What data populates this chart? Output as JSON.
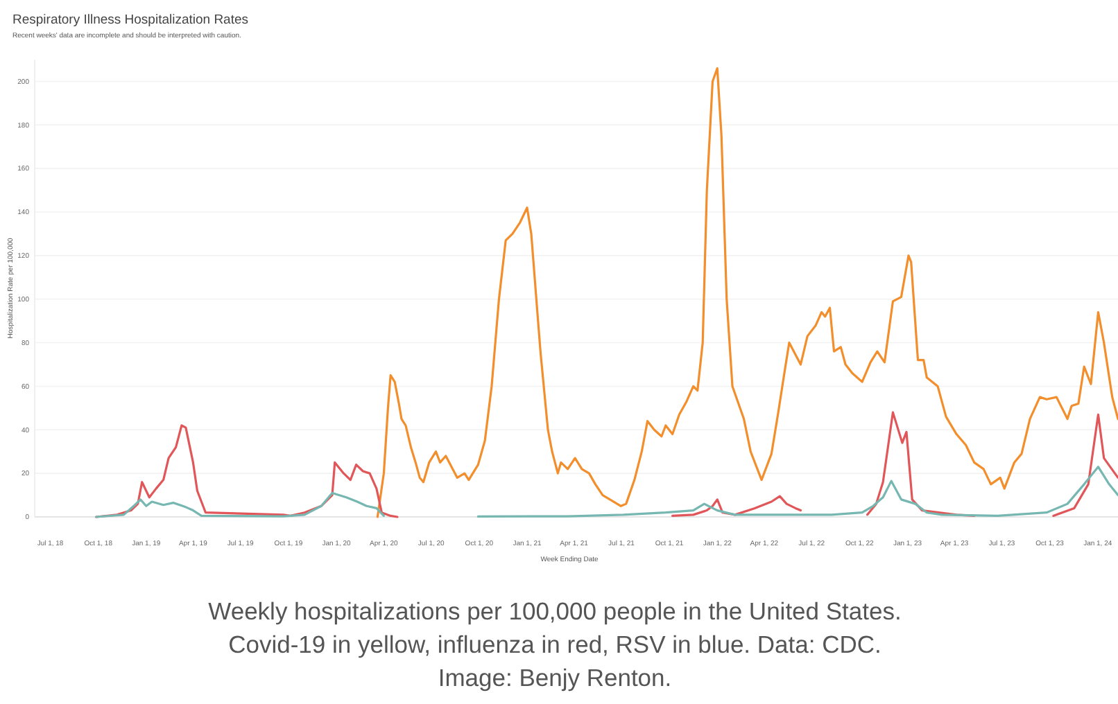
{
  "chart_data": {
    "type": "line",
    "title": "Respiratory Illness Hospitalization Rates",
    "subtitle": "Recent weeks' data are incomplete and should be interpreted with caution.",
    "xlabel": "Week Ending Date",
    "ylabel": "Hospitalization Rate per 100,000",
    "annotations": [
      "Weekly hospitalizations per 100,000 people in the United States. Covid-19 in yellow, influenza in red, RSV in blue. Data: CDC. Image: Benjy Renton."
    ],
    "xlim": [
      "2018-06-01",
      "2024-02-09"
    ],
    "xticks": [
      {
        "value": "2018-07-01",
        "label": "Jul 1, 18"
      },
      {
        "value": "2018-10-01",
        "label": "Oct 1, 18"
      },
      {
        "value": "2019-01-01",
        "label": "Jan 1, 19"
      },
      {
        "value": "2019-04-01",
        "label": "Apr 1, 19"
      },
      {
        "value": "2019-07-01",
        "label": "Jul 1, 19"
      },
      {
        "value": "2019-10-01",
        "label": "Oct 1, 19"
      },
      {
        "value": "2020-01-01",
        "label": "Jan 1, 20"
      },
      {
        "value": "2020-04-01",
        "label": "Apr 1, 20"
      },
      {
        "value": "2020-07-01",
        "label": "Jul 1, 20"
      },
      {
        "value": "2020-10-01",
        "label": "Oct 1, 20"
      },
      {
        "value": "2021-01-01",
        "label": "Jan 1, 21"
      },
      {
        "value": "2021-04-01",
        "label": "Apr 1, 21"
      },
      {
        "value": "2021-07-01",
        "label": "Jul 1, 21"
      },
      {
        "value": "2021-10-01",
        "label": "Oct 1, 21"
      },
      {
        "value": "2022-01-01",
        "label": "Jan 1, 22"
      },
      {
        "value": "2022-04-01",
        "label": "Apr 1, 22"
      },
      {
        "value": "2022-07-01",
        "label": "Jul 1, 22"
      },
      {
        "value": "2022-10-01",
        "label": "Oct 1, 22"
      },
      {
        "value": "2023-01-01",
        "label": "Jan 1, 23"
      },
      {
        "value": "2023-04-01",
        "label": "Apr 1, 23"
      },
      {
        "value": "2023-07-01",
        "label": "Jul 1, 23"
      },
      {
        "value": "2023-10-01",
        "label": "Oct 1, 23"
      },
      {
        "value": "2024-01-01",
        "label": "Jan 1, 24"
      }
    ],
    "ylim": [
      0,
      210
    ],
    "yticks": [
      0,
      20,
      40,
      60,
      80,
      100,
      120,
      140,
      160,
      180,
      200
    ],
    "grid": "y",
    "marker": "none",
    "line_style": "solid",
    "series": [
      {
        "color": "#f28e2b",
        "x": [
          "2020-03-20",
          "2020-04-01",
          "2020-04-09",
          "2020-04-14",
          "2020-04-22",
          "2020-04-30",
          "2020-05-05",
          "2020-05-13",
          "2020-05-23",
          "2020-06-01",
          "2020-06-09",
          "2020-06-16",
          "2020-06-27",
          "2020-07-10",
          "2020-07-18",
          "2020-07-29",
          "2020-08-20",
          "2020-09-03",
          "2020-09-11",
          "2020-09-29",
          "2020-10-12",
          "2020-10-25",
          "2020-11-08",
          "2020-11-21",
          "2020-12-04",
          "2020-12-18",
          "2021-01-01",
          "2021-01-09",
          "2021-01-22",
          "2021-01-27",
          "2021-02-10",
          "2021-02-18",
          "2021-03-01",
          "2021-03-07",
          "2021-03-20",
          "2021-04-03",
          "2021-04-16",
          "2021-04-30",
          "2021-05-12",
          "2021-05-26",
          "2021-06-09",
          "2021-06-30",
          "2021-07-10",
          "2021-07-26",
          "2021-08-09",
          "2021-08-20",
          "2021-09-02",
          "2021-09-16",
          "2021-09-24",
          "2021-10-07",
          "2021-10-20",
          "2021-11-03",
          "2021-11-16",
          "2021-11-24",
          "2021-12-04",
          "2021-12-12",
          "2021-12-23",
          "2022-01-01",
          "2022-01-09",
          "2022-01-19",
          "2022-01-30",
          "2022-02-21",
          "2022-03-06",
          "2022-03-27",
          "2022-04-15",
          "2022-04-28",
          "2022-05-11",
          "2022-05-19",
          "2022-06-10",
          "2022-06-23",
          "2022-07-09",
          "2022-07-20",
          "2022-07-27",
          "2022-08-05",
          "2022-08-13",
          "2022-08-26",
          "2022-09-04",
          "2022-09-17",
          "2022-10-06",
          "2022-10-22",
          "2022-11-04",
          "2022-11-18",
          "2022-12-04",
          "2022-12-20",
          "2023-01-03",
          "2023-01-08",
          "2023-01-21",
          "2023-02-01",
          "2023-02-07",
          "2023-02-28",
          "2023-03-16",
          "2023-04-05",
          "2023-04-23",
          "2023-05-09",
          "2023-05-27",
          "2023-06-10",
          "2023-06-28",
          "2023-07-06",
          "2023-07-25",
          "2023-08-08",
          "2023-08-24",
          "2023-09-12",
          "2023-09-25",
          "2023-10-14",
          "2023-11-04",
          "2023-11-12",
          "2023-11-25",
          "2023-12-06",
          "2023-12-19",
          "2024-01-02",
          "2024-01-13",
          "2024-01-29",
          "2024-02-09"
        ],
        "values": [
          0,
          20,
          50,
          65,
          62,
          52,
          45,
          42,
          32,
          25,
          18,
          16,
          25,
          30,
          25,
          28,
          18,
          20,
          17,
          24,
          35,
          60,
          100,
          127,
          130,
          135,
          142,
          130,
          90,
          75,
          40,
          30,
          20,
          25,
          22,
          27,
          22,
          20,
          15,
          10,
          8,
          5,
          6,
          17,
          30,
          44,
          40,
          37,
          42,
          38,
          47,
          53,
          60,
          58,
          80,
          150,
          200,
          206,
          175,
          100,
          60,
          45,
          30,
          17,
          29,
          48,
          68,
          80,
          70,
          83,
          88,
          94,
          92,
          96,
          76,
          78,
          70,
          66,
          62,
          71,
          76,
          71,
          99,
          101,
          120,
          117,
          72,
          72,
          64,
          60,
          46,
          38,
          33,
          25,
          22,
          15,
          18,
          13,
          25,
          29,
          45,
          55,
          54,
          55,
          45,
          51,
          52,
          69,
          61,
          94,
          80,
          55,
          45
        ]
      },
      {
        "color": "#e15759",
        "x": [
          "2018-09-27",
          "2018-11-06",
          "2018-12-03",
          "2018-12-16",
          "2018-12-24",
          "2019-01-07",
          "2019-01-20",
          "2019-02-03",
          "2019-02-13",
          "2019-02-27",
          "2019-03-10",
          "2019-03-18",
          "2019-04-01",
          "2019-04-09",
          "2019-04-25",
          "2019-09-21",
          "2019-10-05",
          "2019-11-01",
          "2019-12-03",
          "2019-12-24",
          "2019-12-29",
          "2020-01-15",
          "2020-01-28",
          "2020-02-08",
          "2020-02-21",
          "2020-03-05",
          "2020-03-18",
          "2020-03-28",
          "2020-04-14",
          "2020-04-27",
          "2021-01-01",
          "2021-10-07",
          "2021-11-16",
          "2021-12-12",
          "2021-12-23",
          "2022-01-01",
          "2022-01-11",
          "2022-02-04",
          "2022-03-14",
          "2022-04-15",
          "2022-05-01",
          "2022-05-14",
          "2022-05-31",
          "2022-06-10",
          "2022-08-15",
          "2022-10-16",
          "2022-11-02",
          "2022-11-15",
          "2022-12-04",
          "2022-12-22",
          "2022-12-30",
          "2023-01-10",
          "2023-01-29",
          "2023-04-05",
          "2023-05-09",
          "2023-07-15",
          "2023-10-08",
          "2023-11-17",
          "2023-12-14",
          "2024-01-02",
          "2024-01-13",
          "2024-02-09"
        ],
        "values": [
          0,
          1,
          3,
          6,
          16,
          9,
          13,
          17,
          27,
          32,
          42,
          41,
          25,
          12,
          2,
          1,
          0.5,
          2,
          5,
          10,
          25,
          20,
          17,
          24,
          21,
          20,
          13,
          2,
          0.5,
          0,
          null,
          0.5,
          1,
          3,
          5,
          8,
          2,
          1,
          4,
          7,
          9.5,
          6,
          4,
          3,
          null,
          1,
          6,
          16,
          48,
          34,
          39,
          8,
          3,
          1,
          0.5,
          null,
          0.5,
          4,
          15,
          47,
          27,
          18
        ]
      },
      {
        "color": "#76b7b2",
        "x": [
          "2018-09-27",
          "2018-11-19",
          "2018-12-08",
          "2018-12-21",
          "2019-01-01",
          "2019-01-12",
          "2019-02-03",
          "2019-02-22",
          "2019-03-18",
          "2019-04-01",
          "2019-04-17",
          "2019-09-21",
          "2019-11-01",
          "2019-12-03",
          "2019-12-24",
          "2020-01-20",
          "2020-02-10",
          "2020-02-28",
          "2020-03-18",
          "2020-04-01",
          "2020-07-01",
          "2020-09-29",
          "2021-03-20",
          "2021-07-05",
          "2021-09-24",
          "2021-11-16",
          "2021-12-07",
          "2022-01-01",
          "2022-02-04",
          "2022-08-08",
          "2022-10-06",
          "2022-10-27",
          "2022-11-15",
          "2022-12-01",
          "2022-12-20",
          "2023-01-16",
          "2023-02-07",
          "2023-03-08",
          "2023-06-23",
          "2023-09-25",
          "2023-11-04",
          "2023-12-06",
          "2024-01-02",
          "2024-01-23",
          "2024-02-09"
        ],
        "values": [
          0,
          1,
          5,
          8,
          5,
          7,
          5.5,
          6.5,
          4.5,
          3,
          0.5,
          0.3,
          1,
          5,
          11,
          9,
          7,
          5,
          4,
          0.5,
          null,
          0.2,
          0.3,
          1,
          2,
          3,
          6,
          3,
          1,
          1,
          2,
          5,
          9,
          16.5,
          8,
          6,
          2,
          1,
          0.5,
          2,
          6,
          15,
          23,
          15,
          10
        ]
      }
    ]
  }
}
